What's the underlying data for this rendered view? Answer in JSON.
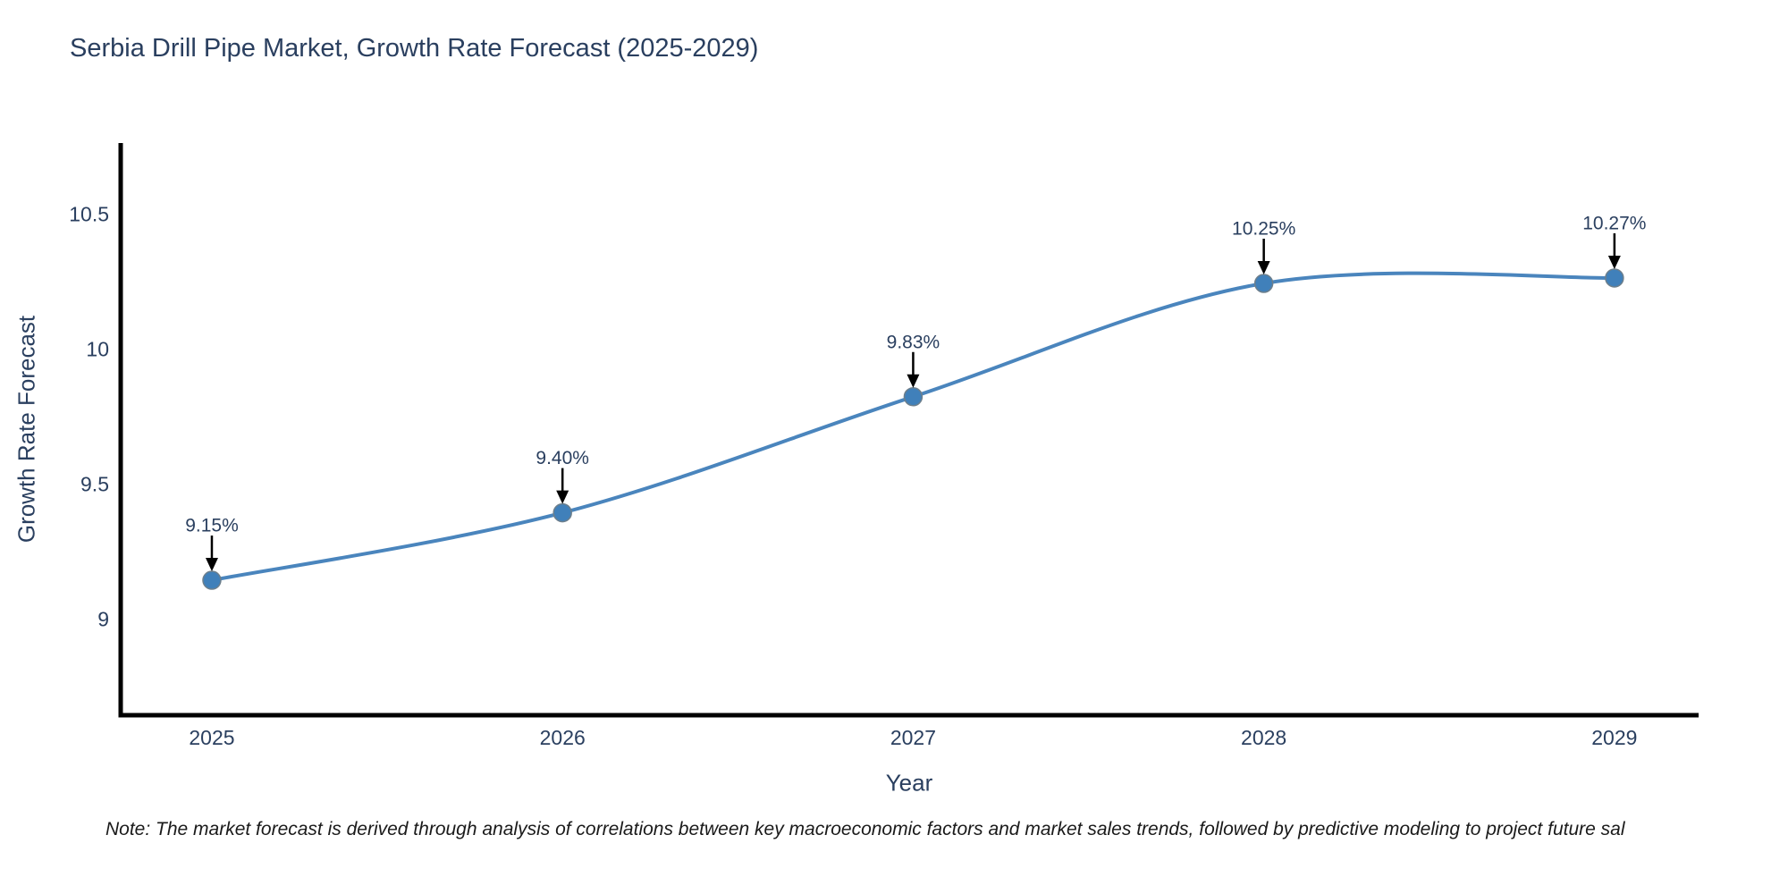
{
  "title": {
    "text": "Serbia Drill Pipe Market, Growth Rate Forecast (2025-2029)"
  },
  "note": {
    "text": "Note: The market forecast is derived through analysis of correlations between key macroeconomic factors and market sales trends, followed by predictive modeling to project future sal"
  },
  "chart_data": {
    "type": "line",
    "title": "Serbia Drill Pipe Market, Growth Rate Forecast (2025-2029)",
    "xlabel": "Year",
    "ylabel": "Growth Rate Forecast",
    "x": [
      2025,
      2026,
      2027,
      2028,
      2029
    ],
    "y": [
      9.15,
      9.4,
      9.83,
      10.25,
      10.27
    ],
    "point_labels": [
      "9.15%",
      "9.40%",
      "9.83%",
      "10.25%",
      "10.27%"
    ],
    "series_name": "Growth Rate Forecast",
    "line_shape": "spline",
    "markers": true,
    "xticks": [
      2025,
      2026,
      2027,
      2028,
      2029
    ],
    "xtick_labels": [
      "2025",
      "2026",
      "2027",
      "2028",
      "2029"
    ],
    "yticks": [
      9,
      9.5,
      10,
      10.5
    ],
    "ytick_labels": [
      "9",
      "9.5",
      "10",
      "10.5"
    ],
    "xlim": [
      2024.74,
      2029.24
    ],
    "ylim": [
      8.65,
      10.77
    ],
    "grid": false,
    "legend": false,
    "annotations_have_arrows": true,
    "colors": {
      "line": "#4a85bd",
      "marker_fill": "#4080ba",
      "marker_edge": "#6d7f8c",
      "axis_line": "#000000",
      "tick_text": "#2a3f5f",
      "annotation_text": "#2a3f5f",
      "annotation_arrow": "#000000",
      "background": "#ffffff"
    }
  }
}
